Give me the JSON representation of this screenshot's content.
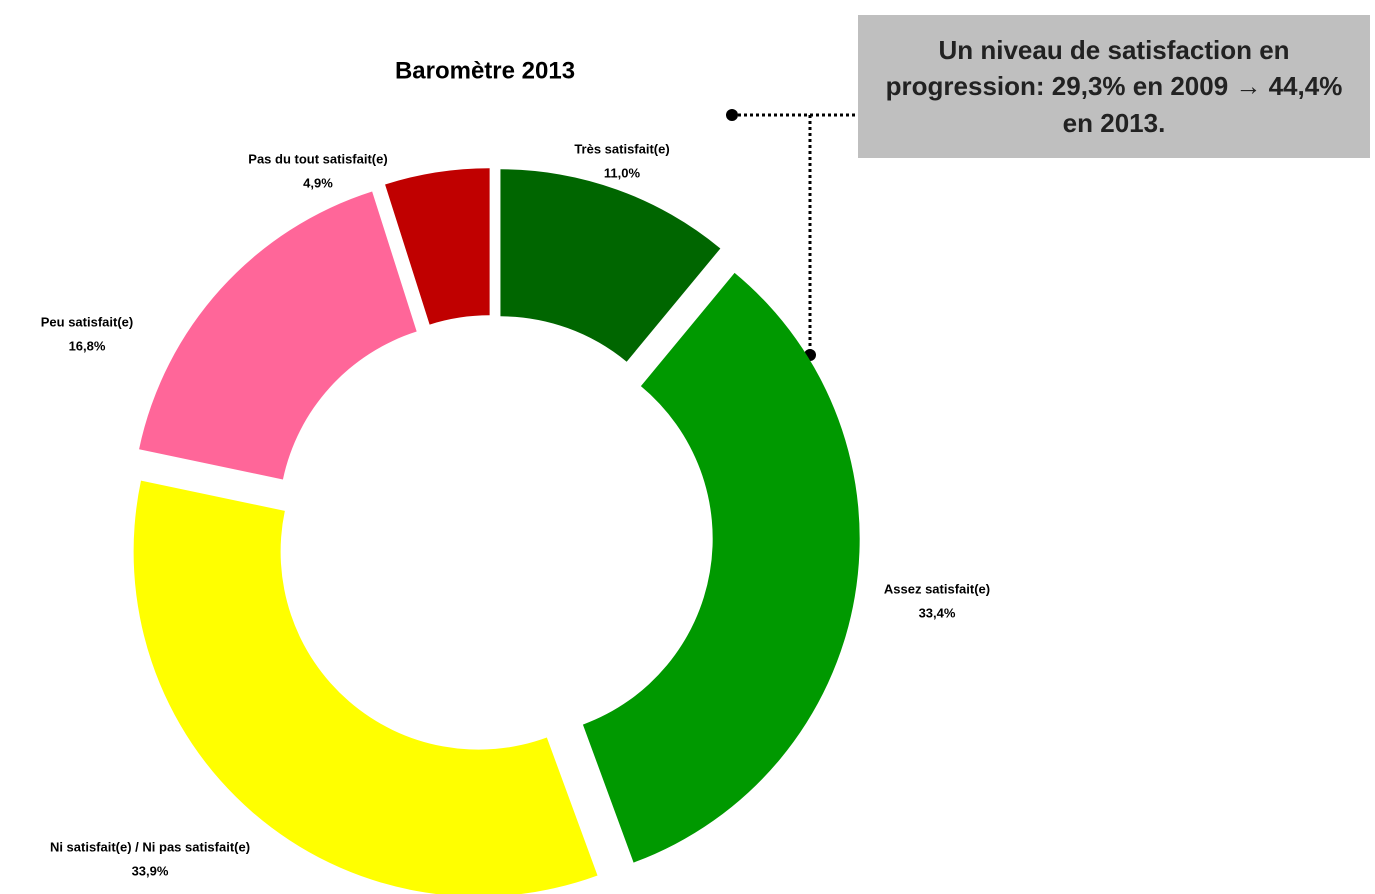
{
  "chart_data": {
    "type": "donut",
    "title": "Baromètre 2013",
    "categories": [
      "Très satisfait(e)",
      "Assez satisfait(e)",
      "Ni satisfait(e) / Ni pas satisfait(e)",
      "Peu satisfait(e)",
      "Pas du tout satisfait(e)"
    ],
    "values": [
      11.0,
      33.4,
      33.9,
      16.8,
      4.9
    ],
    "value_labels": [
      "11,0%",
      "33,4%",
      "33,9%",
      "16,8%",
      "4,9%"
    ],
    "colors": [
      "#006600",
      "#009900",
      "#ffff00",
      "#ff6699",
      "#c00000"
    ],
    "annotation": "Un niveau de satisfaction en progression: 29,3% en 2009 → 44,4% en 2013."
  }
}
